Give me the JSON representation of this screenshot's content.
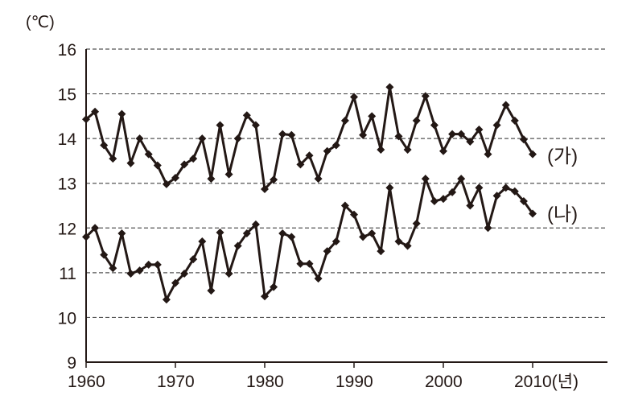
{
  "chart_data": {
    "type": "line",
    "title": "",
    "ylabel": "(℃)",
    "xlabel": "(년)",
    "xlim": [
      1960,
      2018
    ],
    "ylim": [
      9,
      16
    ],
    "x_ticks": [
      1960,
      1970,
      1980,
      1990,
      2000,
      2010
    ],
    "x_tick_labels": [
      "1960",
      "1970",
      "1980",
      "1990",
      "2000",
      "2010(년)"
    ],
    "y_ticks": [
      9,
      10,
      11,
      12,
      13,
      14,
      15,
      16
    ],
    "y_tick_labels": [
      "9",
      "10",
      "11",
      "12",
      "13",
      "14",
      "15",
      "16"
    ],
    "grid": "horizontal dashed",
    "line_color": "#231815",
    "marker": "diamond",
    "x": [
      1960,
      1961,
      1962,
      1963,
      1964,
      1965,
      1966,
      1967,
      1968,
      1969,
      1970,
      1971,
      1972,
      1973,
      1974,
      1975,
      1976,
      1977,
      1978,
      1979,
      1980,
      1981,
      1982,
      1983,
      1984,
      1985,
      1986,
      1987,
      1988,
      1989,
      1990,
      1991,
      1992,
      1993,
      1994,
      1995,
      1996,
      1997,
      1998,
      1999,
      2000,
      2001,
      2002,
      2003,
      2004,
      2005,
      2006,
      2007,
      2008,
      2009,
      2010
    ],
    "series": [
      {
        "name": "(가)",
        "values": [
          14.43,
          14.6,
          13.85,
          13.55,
          14.55,
          13.45,
          14.0,
          13.65,
          13.4,
          12.98,
          13.12,
          13.42,
          13.55,
          14.0,
          13.1,
          14.3,
          13.2,
          14.0,
          14.52,
          14.3,
          12.87,
          13.08,
          14.1,
          14.08,
          13.42,
          13.62,
          13.1,
          13.72,
          13.85,
          14.4,
          14.93,
          14.08,
          14.5,
          13.75,
          15.15,
          14.05,
          13.75,
          14.4,
          14.95,
          14.3,
          13.72,
          14.1,
          14.1,
          13.93,
          14.2,
          13.65,
          14.3,
          14.75,
          14.4,
          13.98,
          13.65
        ]
      },
      {
        "name": "(나)",
        "values": [
          11.8,
          12.0,
          11.4,
          11.1,
          11.88,
          10.98,
          11.05,
          11.18,
          11.18,
          10.4,
          10.77,
          10.98,
          11.3,
          11.7,
          10.6,
          11.9,
          10.98,
          11.6,
          11.88,
          12.08,
          10.47,
          10.68,
          11.88,
          11.8,
          11.2,
          11.2,
          10.87,
          11.48,
          11.7,
          12.5,
          12.3,
          11.8,
          11.88,
          11.48,
          12.9,
          11.7,
          11.6,
          12.1,
          13.1,
          12.6,
          12.65,
          12.8,
          13.1,
          12.5,
          12.9,
          12.0,
          12.72,
          12.9,
          12.82,
          12.6,
          12.32
        ]
      }
    ]
  }
}
